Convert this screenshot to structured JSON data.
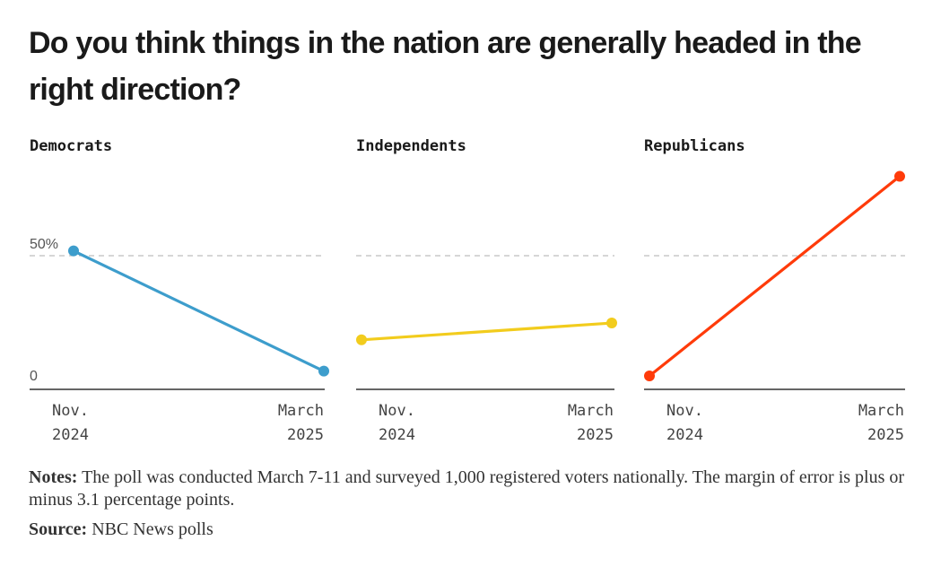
{
  "title": "Do you think things in the nation are generally headed in the right direction?",
  "notes_label": "Notes:",
  "notes_text": "The poll was conducted March 7-11 and surveyed 1,000 registered voters nationally. The margin of error is plus or minus 3.1 percentage points.",
  "source_label": "Source:",
  "source_text": "NBC News polls",
  "chart_data": {
    "type": "line",
    "x_labels": [
      [
        "Nov.",
        "2024"
      ],
      [
        "March",
        "2025"
      ]
    ],
    "y_tick_labels": [
      "0",
      "50%"
    ],
    "ylim": [
      0,
      55
    ],
    "grid": "dashed line at 50%",
    "series": [
      {
        "name": "Democrats",
        "color": "#3d9dcc",
        "values": [
          52,
          2
        ]
      },
      {
        "name": "Independents",
        "color": "#f2cc1d",
        "values": [
          15,
          22
        ]
      },
      {
        "name": "Republicans",
        "color": "#ff3b0a",
        "values": [
          0,
          83
        ]
      }
    ]
  }
}
